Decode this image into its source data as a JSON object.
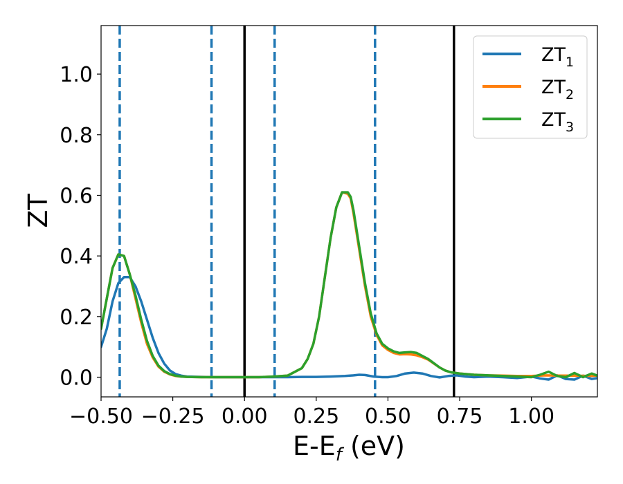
{
  "chart_data": {
    "type": "line",
    "xlabel": "E-E",
    "xlabel_sub": "f",
    "xlabel_tail": " (eV)",
    "ylabel": "ZT",
    "xlim": [
      -0.5,
      1.23
    ],
    "ylim": [
      -0.065,
      1.16
    ],
    "xticks": [
      -0.5,
      -0.25,
      0.0,
      0.25,
      0.5,
      0.75,
      1.0
    ],
    "xtick_labels": [
      "−0.50",
      "−0.25",
      "0.00",
      "0.25",
      "0.50",
      "0.75",
      "1.00"
    ],
    "yticks": [
      0.0,
      0.2,
      0.4,
      0.6,
      0.8,
      1.0
    ],
    "ytick_labels": [
      "0.0",
      "0.2",
      "0.4",
      "0.6",
      "0.8",
      "1.0"
    ],
    "legend_position": "top-right",
    "grid": false,
    "vlines_dashed": {
      "x": [
        -0.435,
        -0.115,
        0.105,
        0.455
      ],
      "color": "#1f77b4"
    },
    "vlines_solid": {
      "x": [
        0.0,
        0.73
      ],
      "color": "#000000"
    },
    "series": [
      {
        "name": "ZT",
        "name_sub": "1",
        "color": "#1f77b4",
        "x": [
          -0.5,
          -0.48,
          -0.46,
          -0.44,
          -0.42,
          -0.4,
          -0.38,
          -0.36,
          -0.34,
          -0.32,
          -0.3,
          -0.28,
          -0.26,
          -0.24,
          -0.22,
          -0.2,
          -0.15,
          -0.1,
          -0.05,
          0.0,
          0.05,
          0.1,
          0.15,
          0.2,
          0.25,
          0.3,
          0.35,
          0.38,
          0.4,
          0.42,
          0.45,
          0.48,
          0.5,
          0.53,
          0.56,
          0.59,
          0.62,
          0.65,
          0.68,
          0.71,
          0.74,
          0.77,
          0.8,
          0.85,
          0.9,
          0.95,
          1.0,
          1.03,
          1.06,
          1.09,
          1.12,
          1.15,
          1.18,
          1.21,
          1.23
        ],
        "y": [
          0.1,
          0.16,
          0.25,
          0.31,
          0.33,
          0.33,
          0.3,
          0.25,
          0.19,
          0.13,
          0.08,
          0.045,
          0.022,
          0.01,
          0.005,
          0.002,
          0.001,
          0.0,
          0.0,
          0.0,
          0.0,
          0.0,
          0.0,
          0.001,
          0.001,
          0.002,
          0.004,
          0.006,
          0.008,
          0.007,
          0.002,
          0.0,
          0.0,
          0.004,
          0.012,
          0.015,
          0.012,
          0.004,
          -0.001,
          0.004,
          0.006,
          0.002,
          0.0,
          0.002,
          0.0,
          -0.003,
          0.002,
          -0.004,
          -0.008,
          0.006,
          -0.006,
          -0.008,
          0.005,
          -0.006,
          -0.003
        ]
      },
      {
        "name": "ZT",
        "name_sub": "2",
        "color": "#ff7f0e",
        "x": [
          -0.5,
          -0.48,
          -0.46,
          -0.44,
          -0.42,
          -0.4,
          -0.38,
          -0.36,
          -0.34,
          -0.32,
          -0.3,
          -0.28,
          -0.26,
          -0.24,
          -0.22,
          -0.2,
          -0.15,
          -0.1,
          -0.05,
          0.0,
          0.05,
          0.1,
          0.15,
          0.2,
          0.22,
          0.24,
          0.26,
          0.28,
          0.3,
          0.32,
          0.34,
          0.36,
          0.37,
          0.38,
          0.4,
          0.42,
          0.44,
          0.46,
          0.48,
          0.5,
          0.52,
          0.54,
          0.56,
          0.58,
          0.6,
          0.62,
          0.64,
          0.66,
          0.68,
          0.7,
          0.72,
          0.75,
          0.8,
          0.85,
          0.9,
          0.95,
          1.0,
          1.05,
          1.1,
          1.15,
          1.2,
          1.23
        ],
        "y": [
          0.16,
          0.26,
          0.36,
          0.405,
          0.4,
          0.34,
          0.26,
          0.18,
          0.11,
          0.065,
          0.035,
          0.018,
          0.009,
          0.004,
          0.002,
          0.001,
          0.0,
          0.0,
          0.0,
          0.0,
          0.0,
          0.002,
          0.005,
          0.03,
          0.06,
          0.11,
          0.2,
          0.33,
          0.46,
          0.56,
          0.61,
          0.605,
          0.59,
          0.54,
          0.42,
          0.3,
          0.2,
          0.14,
          0.105,
          0.09,
          0.08,
          0.075,
          0.076,
          0.075,
          0.072,
          0.066,
          0.058,
          0.045,
          0.032,
          0.022,
          0.016,
          0.012,
          0.008,
          0.006,
          0.005,
          0.004,
          0.004,
          0.006,
          0.005,
          0.005,
          0.004,
          0.005
        ]
      },
      {
        "name": "ZT",
        "name_sub": "3",
        "color": "#2ca02c",
        "x": [
          -0.5,
          -0.48,
          -0.46,
          -0.44,
          -0.42,
          -0.4,
          -0.38,
          -0.36,
          -0.34,
          -0.32,
          -0.3,
          -0.28,
          -0.26,
          -0.24,
          -0.22,
          -0.2,
          -0.15,
          -0.1,
          -0.05,
          0.0,
          0.05,
          0.1,
          0.15,
          0.2,
          0.22,
          0.24,
          0.26,
          0.28,
          0.3,
          0.32,
          0.34,
          0.36,
          0.37,
          0.38,
          0.4,
          0.42,
          0.44,
          0.46,
          0.48,
          0.5,
          0.52,
          0.54,
          0.56,
          0.58,
          0.6,
          0.62,
          0.64,
          0.66,
          0.68,
          0.7,
          0.72,
          0.75,
          0.8,
          0.85,
          0.9,
          0.95,
          1.0,
          1.03,
          1.06,
          1.09,
          1.12,
          1.15,
          1.18,
          1.21,
          1.23
        ],
        "y": [
          0.16,
          0.26,
          0.36,
          0.405,
          0.4,
          0.34,
          0.27,
          0.19,
          0.12,
          0.07,
          0.038,
          0.02,
          0.01,
          0.005,
          0.002,
          0.001,
          0.0,
          0.0,
          0.0,
          0.0,
          0.0,
          0.002,
          0.005,
          0.03,
          0.06,
          0.11,
          0.2,
          0.33,
          0.46,
          0.56,
          0.61,
          0.61,
          0.595,
          0.55,
          0.43,
          0.31,
          0.21,
          0.145,
          0.11,
          0.095,
          0.085,
          0.08,
          0.082,
          0.083,
          0.08,
          0.07,
          0.06,
          0.046,
          0.032,
          0.022,
          0.016,
          0.012,
          0.008,
          0.006,
          0.004,
          0.002,
          0.0,
          0.008,
          0.018,
          0.004,
          0.0,
          0.014,
          0.0,
          0.012,
          0.005
        ]
      }
    ]
  }
}
